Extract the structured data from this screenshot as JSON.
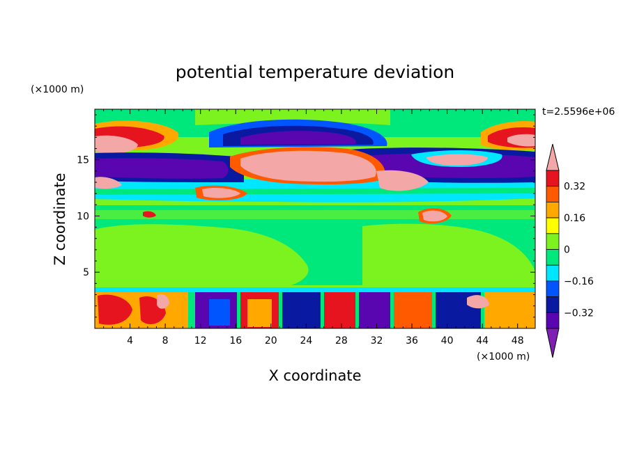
{
  "chart_data": {
    "type": "heatmap",
    "title": "potential temperature deviation",
    "xlabel": "X coordinate",
    "ylabel": "Z coordinate",
    "x_unit": "(×1000 m)",
    "y_unit": "(×1000 m)",
    "time_label": "t=2.5596e+06",
    "xlim": [
      0,
      50
    ],
    "ylim": [
      0,
      19.5
    ],
    "x_ticks": [
      4,
      8,
      12,
      16,
      20,
      24,
      28,
      32,
      36,
      40,
      44,
      48
    ],
    "y_ticks": [
      5,
      10,
      15
    ],
    "colorbar": {
      "levels": [
        -0.4,
        -0.32,
        -0.24,
        -0.16,
        -0.08,
        0,
        0.08,
        0.16,
        0.24,
        0.32,
        0.4
      ],
      "tick_labels": [
        "0.32",
        "0.16",
        "0",
        "−0.16",
        "−0.32"
      ],
      "tick_values": [
        0.32,
        0.16,
        0,
        -0.16,
        -0.32
      ],
      "colors": [
        "#7f1fb3",
        "#5a06b0",
        "#0a1aa0",
        "#0055ff",
        "#00e6ff",
        "#00e87c",
        "#7cf21e",
        "#ffff00",
        "#ffa800",
        "#ff5a00",
        "#e6141e",
        "#f4a7a7"
      ],
      "extend": "both"
    },
    "background_color": "#7cf21e",
    "regions": [
      {
        "value": 0,
        "x": [
          0,
          50
        ],
        "y": [
          3.5,
          11.5
        ],
        "note": "green lower-mid band"
      },
      {
        "value": -0.05,
        "x": [
          0,
          50
        ],
        "y": [
          11.5,
          13.2
        ],
        "note": "cyan band"
      },
      {
        "value": -0.35,
        "x": [
          0,
          24
        ],
        "y": [
          13.5,
          16
        ],
        "note": "purple band left"
      },
      {
        "value": 0.45,
        "x": [
          18,
          30
        ],
        "y": [
          13.5,
          16.5
        ],
        "note": "pink core"
      },
      {
        "value": -0.35,
        "x": [
          30,
          50
        ],
        "y": [
          13.5,
          16
        ],
        "note": "purple band right"
      },
      {
        "value": -0.3,
        "x": [
          16,
          34
        ],
        "y": [
          16,
          18.5
        ],
        "note": "dark blue upper"
      },
      {
        "value": 0.45,
        "x": [
          0,
          4
        ],
        "y": [
          16,
          18
        ],
        "note": "pink upper left"
      },
      {
        "value": 0.45,
        "x": [
          44,
          50
        ],
        "y": [
          16,
          18
        ],
        "note": "pink upper right"
      },
      {
        "value": 0.3,
        "x": [
          0,
          50
        ],
        "y": [
          0,
          3.5
        ],
        "note": "mixed boundary layer"
      }
    ]
  }
}
